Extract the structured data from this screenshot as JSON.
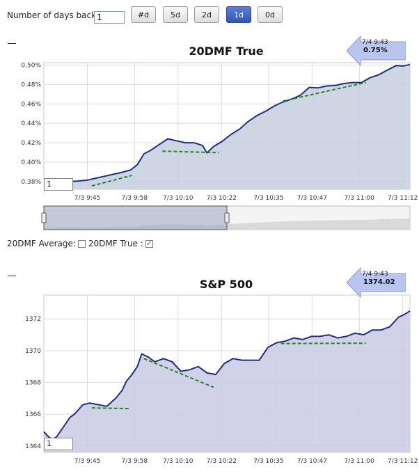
{
  "controls": {
    "days_label": "Number of days back:",
    "days_value": "1",
    "buttons": [
      "#d",
      "5d",
      "2d",
      "1d",
      "0d"
    ],
    "active_button": "1d"
  },
  "legend": {
    "avg_label": "20DMF Average:",
    "true_label": "20DMF True :",
    "avg_checked": false,
    "true_checked": true
  },
  "colors": {
    "line": "#1f2f80",
    "fill": "#c6cfdf",
    "fill2": "#c9c9e3",
    "trend": "#1a8a1a",
    "callout": "#b8c4f0"
  },
  "chart_data": [
    {
      "type": "area",
      "title": "20DMF True",
      "ylabel": "",
      "xlabel": "",
      "ylim": [
        0.372,
        0.5025
      ],
      "yticks": [
        0.38,
        0.4,
        0.42,
        0.44,
        0.46,
        0.48,
        0.5
      ],
      "ytick_labels": [
        "0.38%",
        "0.40%",
        "0.42%",
        "0.44%",
        "0.46%",
        "0.48%",
        "0.50%"
      ],
      "xticks": [
        9.75,
        9.967,
        10.167,
        10.367,
        10.583,
        10.783,
        11.0,
        11.2
      ],
      "xtick_labels": [
        "7/3 9:45",
        "7/3 9:58",
        "7/3 10:10",
        "7/3 10:22",
        "7/3 10:35",
        "7/3 10:47",
        "7/3 11:00",
        "7/3 11:12"
      ],
      "xlim": [
        9.55,
        11.233
      ],
      "series": [
        {
          "name": "20DMF True",
          "x": [
            9.55,
            9.59,
            9.63,
            9.67,
            9.71,
            9.75,
            9.79,
            9.83,
            9.87,
            9.91,
            9.95,
            9.98,
            10.01,
            10.04,
            10.08,
            10.12,
            10.16,
            10.2,
            10.24,
            10.28,
            10.3,
            10.33,
            10.37,
            10.41,
            10.45,
            10.49,
            10.53,
            10.57,
            10.61,
            10.65,
            10.69,
            10.73,
            10.77,
            10.81,
            10.85,
            10.89,
            10.93,
            10.97,
            11.01,
            11.05,
            11.09,
            11.13,
            11.17,
            11.2,
            11.233
          ],
          "values": [
            0.3797,
            0.3798,
            0.38,
            0.38,
            0.3805,
            0.3815,
            0.3835,
            0.3855,
            0.3875,
            0.3895,
            0.392,
            0.3975,
            0.4085,
            0.412,
            0.418,
            0.424,
            0.422,
            0.42,
            0.42,
            0.417,
            0.4095,
            0.416,
            0.4215,
            0.4285,
            0.434,
            0.442,
            0.448,
            0.4525,
            0.458,
            0.462,
            0.465,
            0.469,
            0.477,
            0.4765,
            0.4785,
            0.479,
            0.481,
            0.482,
            0.482,
            0.487,
            0.49,
            0.495,
            0.4995,
            0.499,
            0.5005
          ]
        }
      ],
      "trendlines": [
        {
          "x": [
            9.77,
            9.955
          ],
          "y": [
            0.3755,
            0.3863
          ]
        },
        {
          "x": [
            10.095,
            10.355
          ],
          "y": [
            0.4113,
            0.4097
          ]
        },
        {
          "x": [
            10.65,
            11.03
          ],
          "y": [
            0.463,
            0.482
          ]
        }
      ],
      "callout": {
        "time": "7/4 9:43",
        "value": "0.75%"
      },
      "range_input": "1",
      "navigator": {
        "selected_start": 0.0,
        "selected_end": 0.5
      }
    },
    {
      "type": "area",
      "title": "S&P 500",
      "ylabel": "",
      "xlabel": "",
      "ylim": [
        1363.6,
        1373.5
      ],
      "yticks": [
        1364,
        1366,
        1368,
        1370,
        1372
      ],
      "ytick_labels": [
        "1364",
        "1366",
        "1368",
        "1370",
        "1372"
      ],
      "xticks": [
        9.75,
        9.967,
        10.167,
        10.367,
        10.583,
        10.783,
        11.0,
        11.2
      ],
      "xtick_labels": [
        "7/3 9:45",
        "7/3 9:58",
        "7/3 10:10",
        "7/3 10:22",
        "7/3 10:35",
        "7/3 10:47",
        "7/3 11:00",
        "7/3 11:12"
      ],
      "xlim": [
        9.55,
        11.233
      ],
      "series": [
        {
          "name": "S&P 500",
          "x": [
            9.55,
            9.57,
            9.59,
            9.61,
            9.63,
            9.65,
            9.67,
            9.69,
            9.71,
            9.73,
            9.76,
            9.8,
            9.84,
            9.88,
            9.91,
            9.93,
            9.95,
            9.98,
            10.0,
            10.03,
            10.06,
            10.1,
            10.14,
            10.18,
            10.22,
            10.26,
            10.3,
            10.34,
            10.38,
            10.42,
            10.46,
            10.5,
            10.54,
            10.58,
            10.62,
            10.66,
            10.7,
            10.74,
            10.78,
            10.82,
            10.86,
            10.9,
            10.94,
            10.98,
            11.02,
            11.06,
            11.1,
            11.14,
            11.18,
            11.21,
            11.233
          ],
          "values": [
            1364.9,
            1364.6,
            1364.4,
            1364.6,
            1365.0,
            1365.4,
            1365.8,
            1366.0,
            1366.3,
            1366.6,
            1366.7,
            1366.6,
            1366.5,
            1367.0,
            1367.5,
            1368.1,
            1368.4,
            1369.0,
            1369.8,
            1369.6,
            1369.3,
            1369.5,
            1369.3,
            1368.7,
            1368.8,
            1369.0,
            1368.6,
            1368.5,
            1369.2,
            1369.5,
            1369.4,
            1369.4,
            1369.4,
            1370.2,
            1370.5,
            1370.6,
            1370.8,
            1370.7,
            1370.9,
            1370.9,
            1371.0,
            1370.8,
            1370.9,
            1371.1,
            1371.0,
            1371.3,
            1371.3,
            1371.5,
            1372.1,
            1372.3,
            1372.5
          ]
        }
      ],
      "trendlines": [
        {
          "x": [
            9.77,
            9.945
          ],
          "y": [
            1366.4,
            1366.35
          ]
        },
        {
          "x": [
            10.01,
            10.33
          ],
          "y": [
            1369.5,
            1367.7
          ]
        },
        {
          "x": [
            10.64,
            11.03
          ],
          "y": [
            1370.45,
            1370.47
          ]
        }
      ],
      "callout": {
        "time": "7/4 9:43",
        "value": "1374.02"
      },
      "range_input": "1"
    }
  ]
}
